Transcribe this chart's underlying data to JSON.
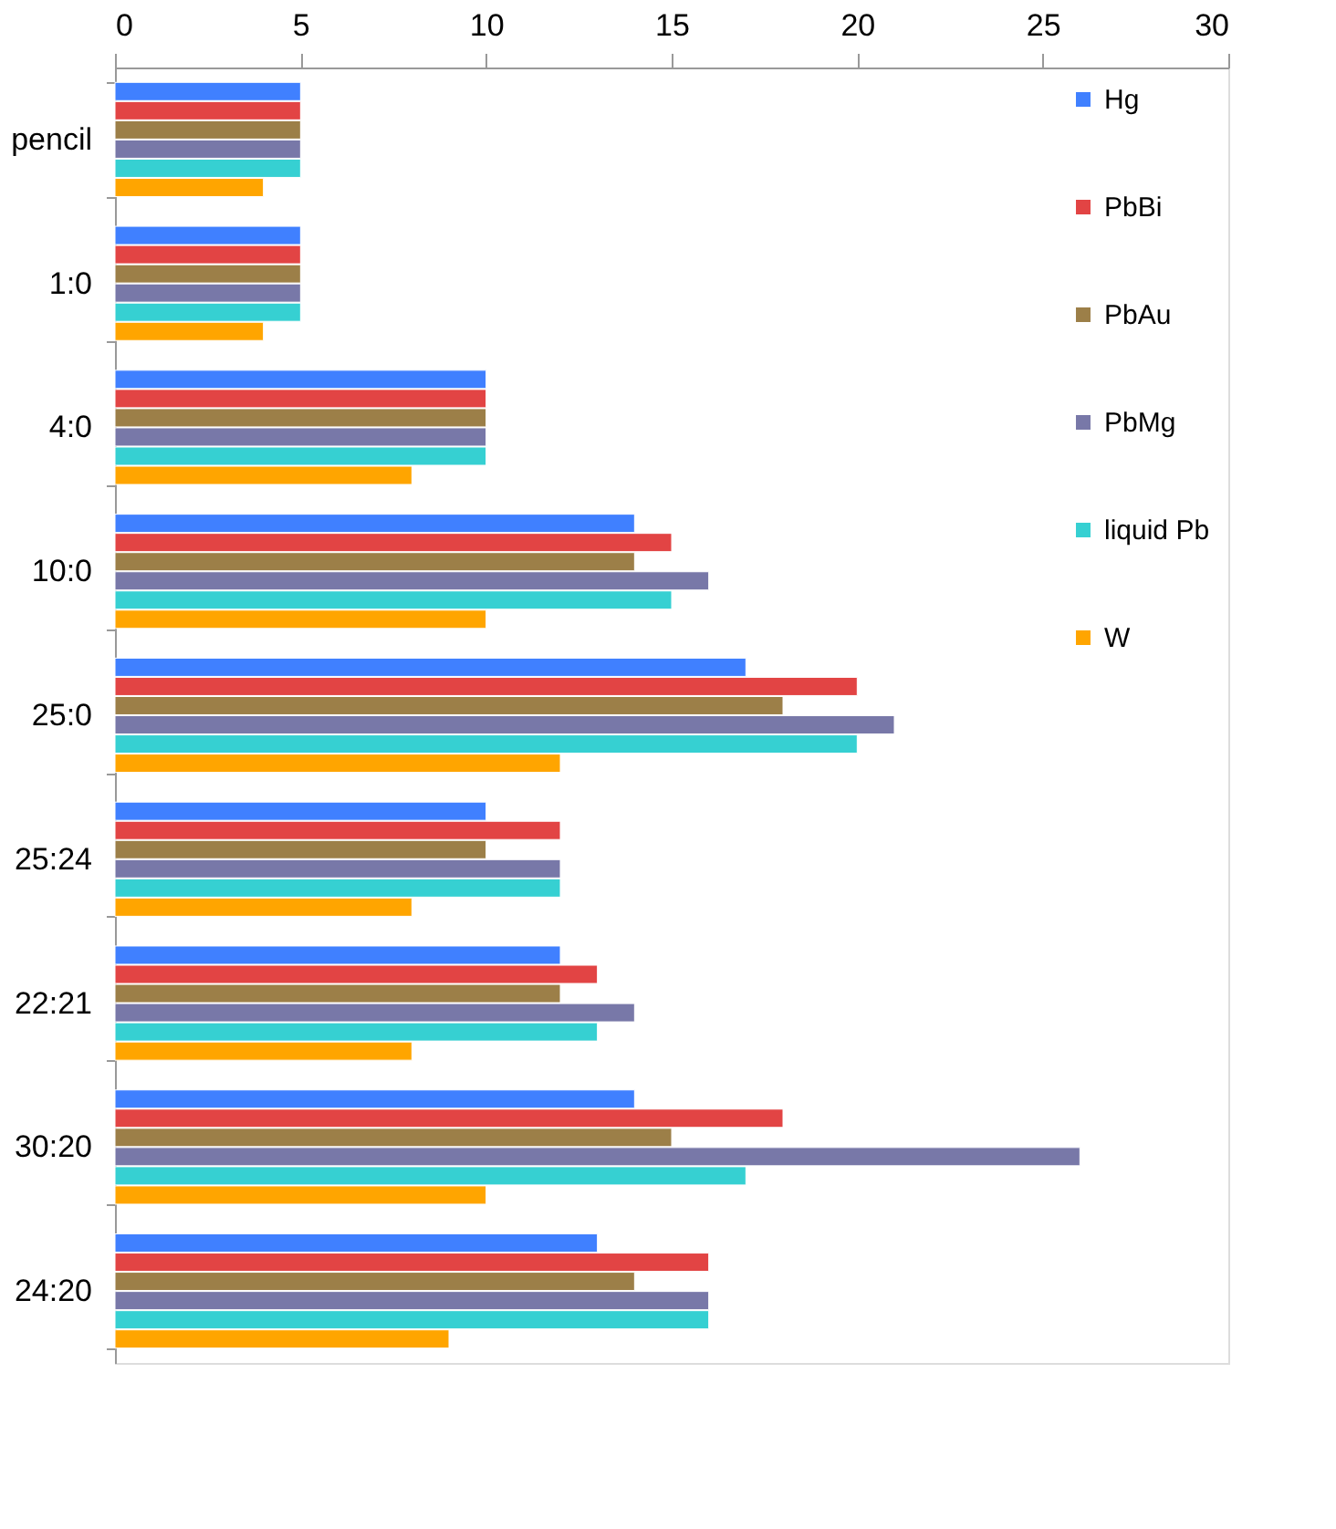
{
  "chart_data": {
    "type": "bar",
    "orientation": "horizontal",
    "categories": [
      "pencil",
      "1:0",
      "4:0",
      "10:0",
      "25:0",
      "25:24",
      "22:21",
      "30:20",
      "24:20"
    ],
    "series": [
      {
        "name": "Hg",
        "color": "#4080ff",
        "values": [
          5,
          5,
          10,
          14,
          17,
          10,
          12,
          14,
          13
        ]
      },
      {
        "name": "PbBi",
        "color": "#e24444",
        "values": [
          5,
          5,
          10,
          15,
          20,
          12,
          13,
          18,
          16
        ]
      },
      {
        "name": "PbAu",
        "color": "#9c7f48",
        "values": [
          5,
          5,
          10,
          14,
          18,
          10,
          12,
          15,
          14
        ]
      },
      {
        "name": "PbMg",
        "color": "#7878a8",
        "values": [
          5,
          5,
          10,
          16,
          21,
          12,
          14,
          26,
          16
        ]
      },
      {
        "name": "liquid Pb",
        "color": "#36d0d2",
        "values": [
          5,
          5,
          10,
          15,
          20,
          12,
          13,
          17,
          16
        ]
      },
      {
        "name": "W",
        "color": "#ffa500",
        "values": [
          4,
          4,
          8,
          10,
          12,
          8,
          8,
          10,
          9
        ]
      }
    ],
    "xlim": [
      0,
      30
    ],
    "xticks": [
      0,
      5,
      10,
      15,
      20,
      25,
      30
    ],
    "grid": false,
    "legend": "top right"
  }
}
